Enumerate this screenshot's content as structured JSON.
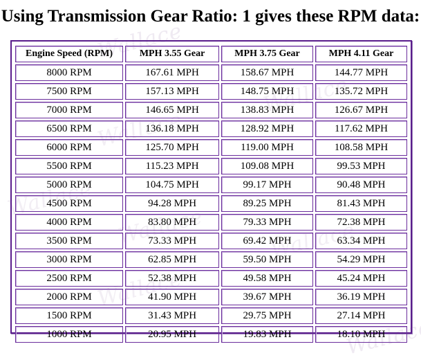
{
  "title": "Using Transmission Gear Ratio: 1 gives these RPM data:",
  "watermark": "Wallace",
  "table": {
    "headers": [
      "Engine Speed (RPM)",
      "MPH   3.55 Gear",
      "MPH   3.75 Gear",
      "MPH   4.11 Gear"
    ],
    "rows": [
      [
        "8000 RPM",
        "167.61 MPH",
        "158.67 MPH",
        "144.77 MPH"
      ],
      [
        "7500 RPM",
        "157.13 MPH",
        "148.75 MPH",
        "135.72 MPH"
      ],
      [
        "7000 RPM",
        "146.65 MPH",
        "138.83 MPH",
        "126.67 MPH"
      ],
      [
        "6500 RPM",
        "136.18 MPH",
        "128.92 MPH",
        "117.62 MPH"
      ],
      [
        "6000 RPM",
        "125.70 MPH",
        "119.00 MPH",
        "108.58 MPH"
      ],
      [
        "5500 RPM",
        "115.23 MPH",
        "109.08 MPH",
        "99.53 MPH"
      ],
      [
        "5000 RPM",
        "104.75 MPH",
        "99.17 MPH",
        "90.48 MPH"
      ],
      [
        "4500 RPM",
        "94.28 MPH",
        "89.25 MPH",
        "81.43 MPH"
      ],
      [
        "4000 RPM",
        "83.80 MPH",
        "79.33 MPH",
        "72.38 MPH"
      ],
      [
        "3500 RPM",
        "73.33 MPH",
        "69.42 MPH",
        "63.34 MPH"
      ],
      [
        "3000 RPM",
        "62.85 MPH",
        "59.50 MPH",
        "54.29 MPH"
      ],
      [
        "2500 RPM",
        "52.38 MPH",
        "49.58 MPH",
        "45.24 MPH"
      ],
      [
        "2000 RPM",
        "41.90 MPH",
        "39.67 MPH",
        "36.19 MPH"
      ],
      [
        "1500 RPM",
        "31.43 MPH",
        "29.75 MPH",
        "27.14 MPH"
      ],
      [
        "1000 RPM",
        "20.95 MPH",
        "19.83 MPH",
        "18.10 MPH"
      ]
    ]
  },
  "colors": {
    "border": "#5a1d8c",
    "cell_border": "#6a2c9c",
    "watermark": "#efeaf2"
  }
}
